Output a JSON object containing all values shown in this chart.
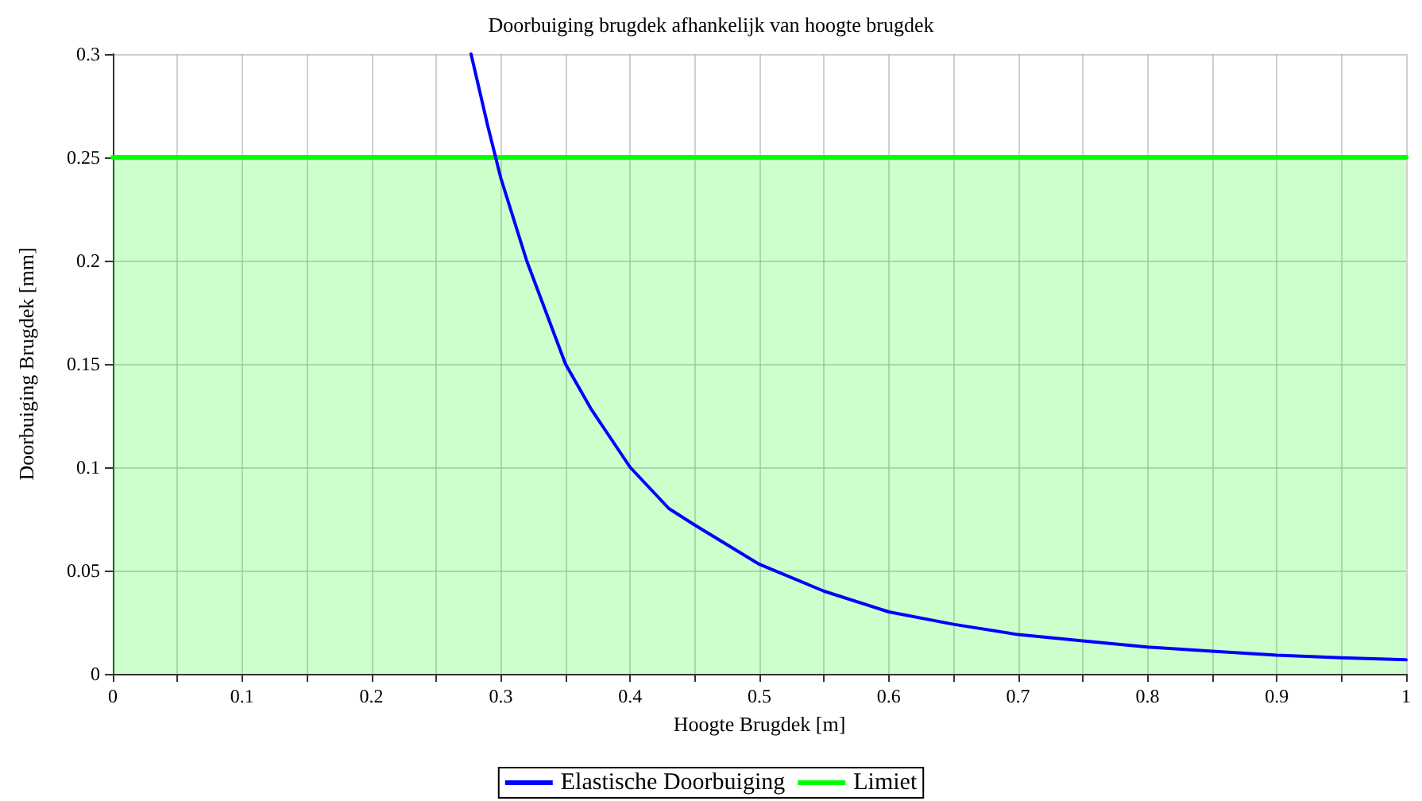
{
  "chart_data": {
    "type": "line",
    "title": "Doorbuiging brugdek afhankelijk van hoogte brugdek",
    "xlabel": "Hoogte Brugdek [m]",
    "ylabel": "Doorbuiging Brugdek [mm]",
    "series": [
      {
        "name": "Elastische Doorbuiging",
        "color": "#0000ff",
        "x": [
          0.277,
          0.29,
          0.3,
          0.32,
          0.35,
          0.37,
          0.4,
          0.43,
          0.45,
          0.5,
          0.55,
          0.6,
          0.65,
          0.7,
          0.75,
          0.8,
          0.85,
          0.9,
          0.95,
          1
        ],
        "values": [
          0.3,
          0.265,
          0.24,
          0.2,
          0.15,
          0.128,
          0.1,
          0.08,
          0.072,
          0.053,
          0.04,
          0.03,
          0.024,
          0.019,
          0.016,
          0.013,
          0.011,
          0.009,
          0.0078,
          0.0068
        ]
      },
      {
        "name": "Limiet",
        "type": "area",
        "color": "#00ff00",
        "x": [
          0,
          1
        ],
        "values": [
          0.25,
          0.25
        ]
      }
    ],
    "xlim": [
      0,
      1
    ],
    "ylim": [
      0,
      0.3
    ],
    "xticks": [
      0,
      {
        "value": 0.05,
        "label": null
      },
      0.1,
      {
        "value": 0.15,
        "label": null
      },
      0.2,
      {
        "value": 0.25,
        "label": null
      },
      0.3,
      {
        "value": 0.35,
        "label": null
      },
      0.4,
      {
        "value": 0.45,
        "label": null
      },
      0.5,
      {
        "value": 0.55,
        "label": null
      },
      0.6,
      {
        "value": 0.65,
        "label": null
      },
      0.7,
      {
        "value": 0.75,
        "label": null
      },
      0.8,
      {
        "value": 0.85,
        "label": null
      },
      0.9,
      {
        "value": 0.95,
        "label": null
      },
      1
    ],
    "yticks": [
      0,
      0.05,
      0.1,
      0.15,
      0.2,
      0.25,
      0.3
    ],
    "grid": true,
    "legend": "bottom",
    "marker": "none",
    "line_style": "solid"
  }
}
